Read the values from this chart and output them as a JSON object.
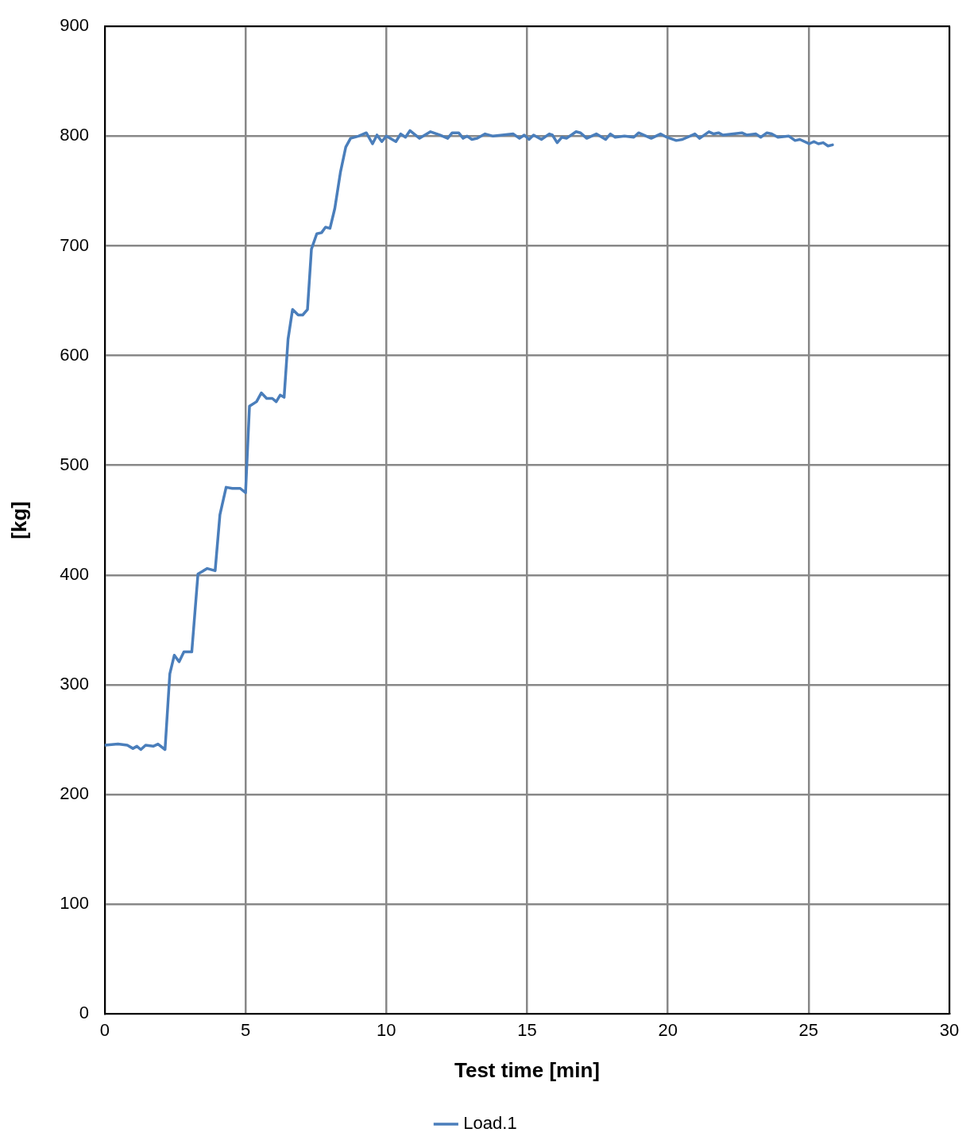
{
  "chart_data": {
    "type": "line",
    "xlabel": "Test time [min]",
    "ylabel": "[kg]",
    "xlim": [
      0,
      30
    ],
    "xticks": [
      0,
      5,
      10,
      15,
      20,
      25,
      30
    ],
    "ylim": [
      0,
      900
    ],
    "yticks": [
      0,
      100,
      200,
      300,
      400,
      500,
      600,
      700,
      800,
      900
    ],
    "grid": true,
    "legend": "bottom",
    "marker": "none",
    "line_style": "solid",
    "x": [
      0,
      0.47,
      0.8,
      1.0,
      1.14,
      1.28,
      1.45,
      1.72,
      1.89,
      2.14,
      2.31,
      2.47,
      2.64,
      2.81,
      3.09,
      3.31,
      3.64,
      3.92,
      4.09,
      4.31,
      4.53,
      4.81,
      5.0,
      5.14,
      5.39,
      5.56,
      5.75,
      5.95,
      6.09,
      6.23,
      6.37,
      6.51,
      6.67,
      6.87,
      7.03,
      7.2,
      7.34,
      7.53,
      7.7,
      7.84,
      8.0,
      8.17,
      8.37,
      8.56,
      8.73,
      9.01,
      9.29,
      9.51,
      9.67,
      9.84,
      10.0,
      10.34,
      10.51,
      10.68,
      10.84,
      11.18,
      11.57,
      11.9,
      12.18,
      12.34,
      12.57,
      12.73,
      12.87,
      13.04,
      13.23,
      13.51,
      13.79,
      14.12,
      14.51,
      14.73,
      14.9,
      15.07,
      15.23,
      15.51,
      15.79,
      15.9,
      16.07,
      16.24,
      16.4,
      16.74,
      16.9,
      17.12,
      17.46,
      17.79,
      17.96,
      18.13,
      18.46,
      18.79,
      18.96,
      19.41,
      19.74,
      19.96,
      20.3,
      20.52,
      20.96,
      21.13,
      21.46,
      21.63,
      21.8,
      21.96,
      22.63,
      22.8,
      23.13,
      23.3,
      23.52,
      23.69,
      23.91,
      24.3,
      24.52,
      24.69,
      25.02,
      25.19,
      25.35,
      25.52,
      25.69,
      25.85
    ],
    "series": [
      {
        "name": "Load.1",
        "color": "#4a7ebb",
        "values": [
          245,
          246,
          245,
          242,
          244,
          241,
          245,
          244,
          246,
          241,
          310,
          327,
          321,
          330,
          330,
          401,
          406,
          404,
          455,
          480,
          479,
          479,
          475,
          554,
          558,
          566,
          561,
          561,
          558,
          564,
          562,
          615,
          642,
          637,
          637,
          642,
          697,
          711,
          712,
          717,
          716,
          734,
          767,
          790,
          798,
          800,
          803,
          793,
          801,
          795,
          800,
          795,
          802,
          799,
          805,
          798,
          804,
          801,
          798,
          803,
          803,
          798,
          800,
          797,
          798,
          802,
          800,
          801,
          802,
          798,
          801,
          797,
          801,
          797,
          802,
          801,
          794,
          799,
          798,
          804,
          803,
          798,
          802,
          797,
          802,
          799,
          800,
          799,
          803,
          798,
          802,
          799,
          796,
          797,
          802,
          798,
          804,
          802,
          803,
          801,
          803,
          801,
          802,
          799,
          803,
          802,
          799,
          800,
          796,
          797,
          793,
          795,
          793,
          794,
          791,
          792
        ]
      }
    ]
  }
}
